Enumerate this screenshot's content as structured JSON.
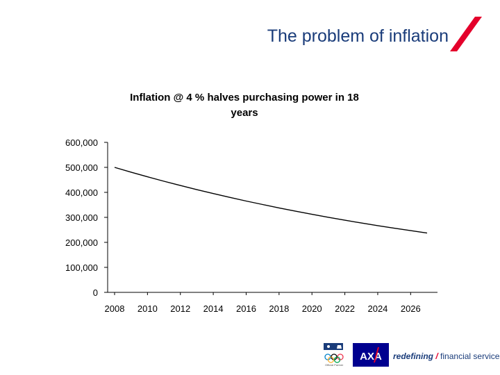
{
  "slide": {
    "title": "The problem of inflation",
    "accent_color": "#e4002b",
    "title_color": "#1a3c7a"
  },
  "chart_data": {
    "type": "line",
    "title": "Inflation @ 4 % halves purchasing power in 18 years",
    "title_lines": [
      "Inflation @ 4 % halves purchasing power in 18",
      "years"
    ],
    "xlabel": "",
    "ylabel": "",
    "x": [
      2008,
      2009,
      2010,
      2011,
      2012,
      2013,
      2014,
      2015,
      2016,
      2017,
      2018,
      2019,
      2020,
      2021,
      2022,
      2023,
      2024,
      2025,
      2026,
      2027
    ],
    "series": [
      {
        "values": [
          500000,
          480769,
          462278,
          444498,
          427402,
          410963,
          395157,
          379958,
          365345,
          351293,
          337782,
          324790,
          312298,
          300287,
          288737,
          277632,
          266954,
          256687,
          246814,
          237321
        ]
      }
    ],
    "xticks": [
      "2008",
      "2010",
      "2012",
      "2014",
      "2016",
      "2018",
      "2020",
      "2022",
      "2024",
      "2026"
    ],
    "yticks": [
      "0",
      "100,000",
      "200,000",
      "300,000",
      "400,000",
      "500,000",
      "600,000"
    ],
    "ylim": [
      0,
      600000
    ],
    "xlim": [
      2008,
      2027
    ],
    "grid": false,
    "line_color": "#000000"
  },
  "footer": {
    "tagline_bold": "redefining",
    "tagline_slash": "/",
    "tagline_rest": "financial services",
    "axa_logo_icon": "axa-logo-icon",
    "partner_icon": "olympic-partner-icon",
    "partner_text": "Official Partner"
  }
}
